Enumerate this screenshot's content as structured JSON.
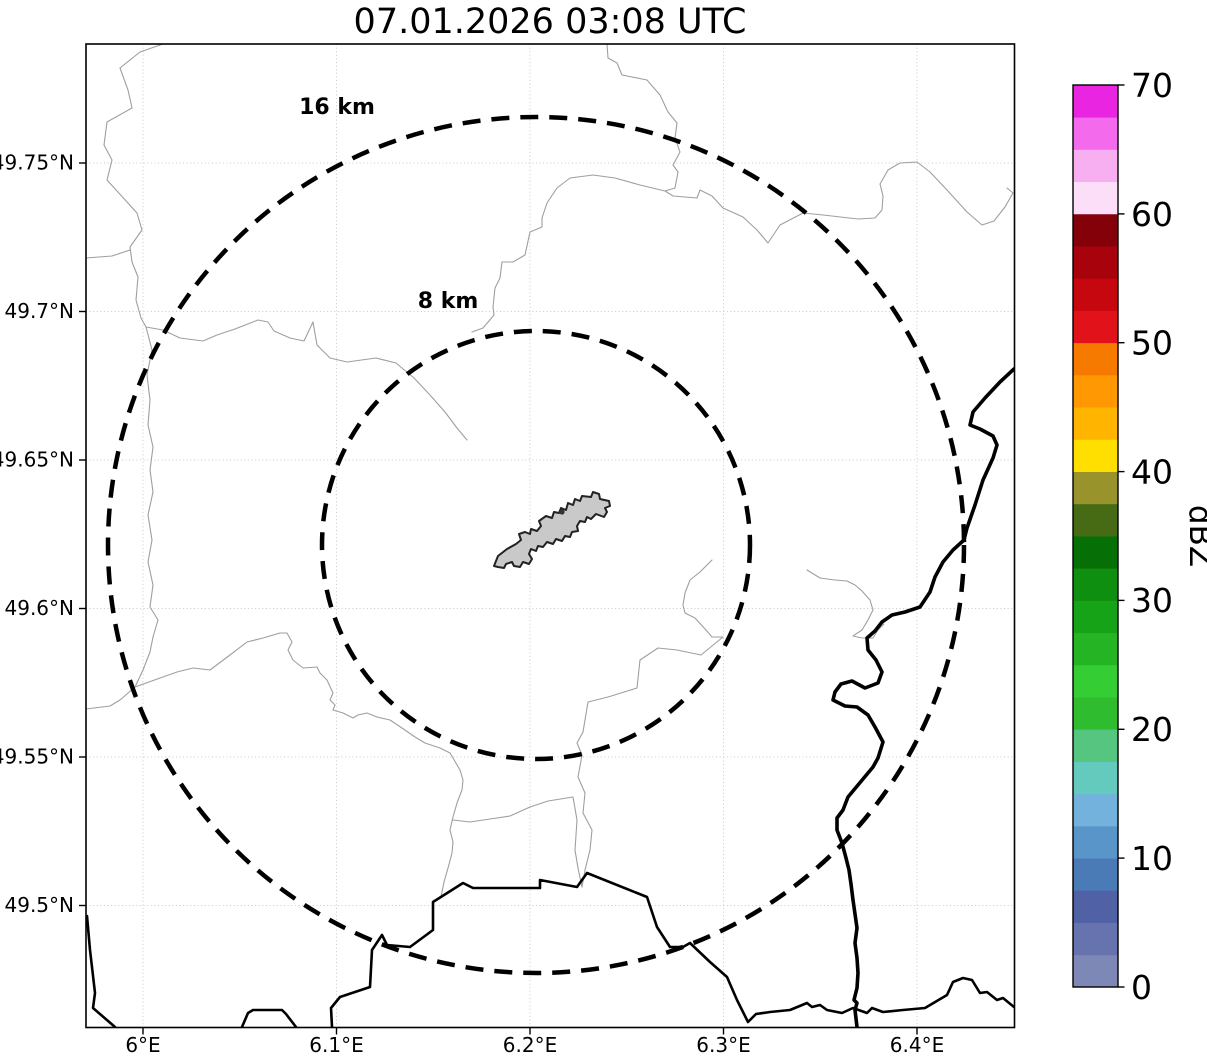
{
  "title": "07.01.2026 03:08 UTC",
  "map": {
    "x_tick_labels": [
      "6°E",
      "6.1°E",
      "6.2°E",
      "6.3°E",
      "6.4°E"
    ],
    "y_tick_labels": [
      "49.75°N",
      "49.7°N",
      "49.65°N",
      "49.6°N",
      "49.55°N",
      "49.5°N"
    ],
    "ring_labels": {
      "outer": "16 km",
      "inner": "8 km"
    }
  },
  "colorbar": {
    "label": "dBZ",
    "tick_labels": [
      "0",
      "10",
      "20",
      "30",
      "40",
      "50",
      "60",
      "70"
    ],
    "min": 0,
    "max": 70,
    "segment_step_dbz": 2.5,
    "colors": [
      "#7d88b6",
      "#6673ae",
      "#5061a5",
      "#4b7bb7",
      "#5a95ca",
      "#72b2dc",
      "#63cabd",
      "#55c57f",
      "#2fbd2f",
      "#34cd34",
      "#24b424",
      "#17a317",
      "#0f8f0f",
      "#067006",
      "#476b15",
      "#98942b",
      "#ffdf00",
      "#ffb400",
      "#ff9802",
      "#f67a00",
      "#e2121a",
      "#c60710",
      "#a8020c",
      "#850109",
      "#fcdef9",
      "#f8aff2",
      "#f46aec",
      "#ea25e2"
    ]
  },
  "colors": {
    "municipal_boundary": "#9f9f9f",
    "country_border_river": "#000000",
    "range_ring": "#000000",
    "airport_fill": "#c9c9c9",
    "gridline": "#c9c9c9"
  },
  "chart_data": {
    "type": "heatmap",
    "subtype": "weather-radar-reflectivity-map",
    "title": "07.01.2026 03:08 UTC",
    "x_tick_labels": [
      "6°E",
      "6.1°E",
      "6.2°E",
      "6.3°E",
      "6.4°E"
    ],
    "y_tick_labels": [
      "49.75°N",
      "49.7°N",
      "49.65°N",
      "49.6°N",
      "49.55°N",
      "49.5°N"
    ],
    "lon_range_deg_east": [
      5.97,
      6.45
    ],
    "lat_range_deg_north": [
      49.46,
      49.79
    ],
    "grid": true,
    "range_rings_km": [
      8,
      16
    ],
    "range_ring_labels": [
      "16 km",
      "8 km"
    ],
    "colorbar": {
      "label": "dBZ",
      "min": 0,
      "max": 70,
      "tick_values": [
        0,
        10,
        20,
        30,
        40,
        50,
        60,
        70
      ],
      "segment_step_dbz": 2.5,
      "orientation": "vertical",
      "position": "right"
    },
    "echoes": [],
    "note_visible_content": "Base map with two dashed radar range rings (8 km, 16 km), gray municipal boundaries, thick black country border and river, gray airport polygon at ring center; no reflectivity echoes plotted"
  }
}
